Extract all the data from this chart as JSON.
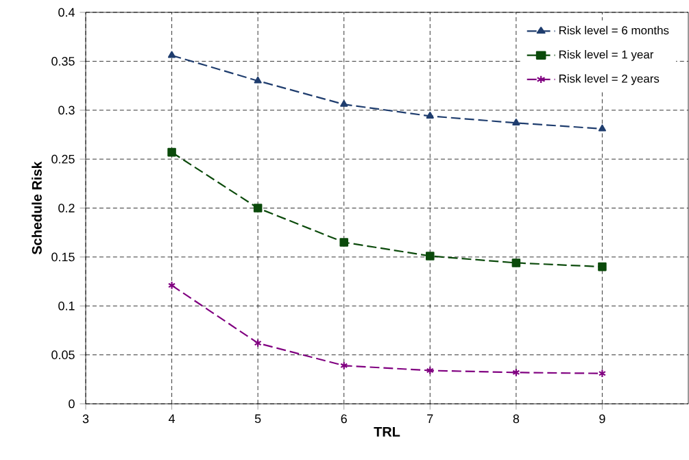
{
  "chart_data": {
    "type": "line",
    "xlabel": "TRL",
    "ylabel": "Schedule Risk",
    "x": [
      4,
      5,
      6,
      7,
      8,
      9
    ],
    "series": [
      {
        "name": "Risk level = 6 months",
        "color": "#1f3d6e",
        "marker": "triangle",
        "values": [
          0.356,
          0.33,
          0.306,
          0.294,
          0.287,
          0.281
        ]
      },
      {
        "name": "Risk level = 1 year",
        "color": "#0b4a0b",
        "marker": "square",
        "values": [
          0.257,
          0.2,
          0.165,
          0.151,
          0.144,
          0.14
        ]
      },
      {
        "name": "Risk level = 2 years",
        "color": "#800080",
        "marker": "cross",
        "values": [
          0.121,
          0.062,
          0.039,
          0.034,
          0.032,
          0.031
        ]
      }
    ],
    "xlim": [
      3,
      10
    ],
    "xticks": [
      3,
      4,
      5,
      6,
      7,
      8,
      9
    ],
    "ylim": [
      0,
      0.4
    ],
    "yticks": [
      0,
      0.05,
      0.1,
      0.15,
      0.2,
      0.25,
      0.3,
      0.35,
      0.4
    ],
    "grid": true,
    "legend": "top right",
    "line_style": "dashed"
  }
}
